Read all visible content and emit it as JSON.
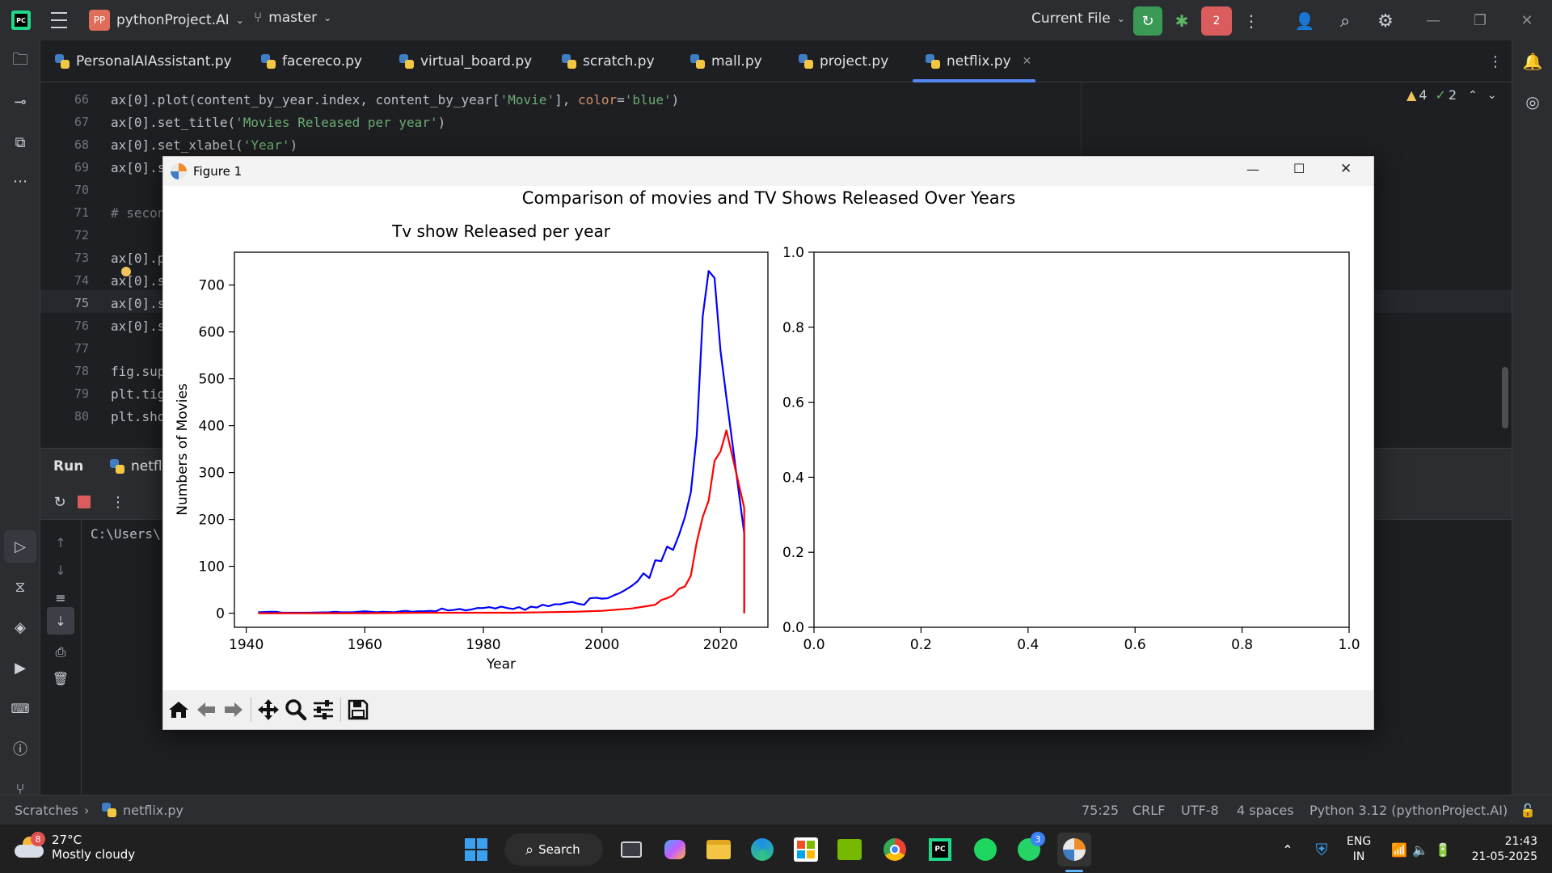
{
  "titlebar": {
    "project_badge": "PP",
    "project_name": "pythonProject.AI",
    "branch": "master",
    "run_config": "Current File",
    "vcs_badge": "2"
  },
  "tabs": [
    {
      "label": "PersonalAIAssistant.py"
    },
    {
      "label": "facereco.py"
    },
    {
      "label": "virtual_board.py"
    },
    {
      "label": "scratch.py"
    },
    {
      "label": "mall.py"
    },
    {
      "label": "project.py"
    },
    {
      "label": "netflix.py",
      "active": true
    }
  ],
  "editor": {
    "inspections": {
      "warnings": "4",
      "weak_warnings": "2"
    },
    "lines": [
      {
        "num": "66",
        "code": "ax[0].plot(content_by_year.index, content_by_year[",
        "s1": "'Movie'",
        "c2": "], ",
        "kw": "color",
        "c3": "=",
        "s2": "'blue'",
        "c4": ")"
      },
      {
        "num": "67",
        "code": "ax[0].set_title(",
        "s1": "'Movies Released per year'",
        "c2": ")"
      },
      {
        "num": "68",
        "code": "ax[0].set_xlabel(",
        "s1": "'Year'",
        "c2": ")"
      },
      {
        "num": "69",
        "code": "ax[0].s"
      },
      {
        "num": "70",
        "code": ""
      },
      {
        "num": "71",
        "code": "# secon"
      },
      {
        "num": "72",
        "code": ""
      },
      {
        "num": "73",
        "code": "ax[0].p"
      },
      {
        "num": "74",
        "code": "ax[0].s"
      },
      {
        "num": "75",
        "code": "ax[0].s"
      },
      {
        "num": "76",
        "code": "ax[0].s"
      },
      {
        "num": "77",
        "code": ""
      },
      {
        "num": "78",
        "code": "fig.sup"
      },
      {
        "num": "79",
        "code": "plt.tig"
      },
      {
        "num": "80",
        "code": "plt.sho"
      }
    ]
  },
  "run": {
    "title": "Run",
    "tab": "netflix",
    "console_line": "C:\\Users\\"
  },
  "figure": {
    "window_title": "Figure 1",
    "suptitle": "Comparison of movies and TV Shows Released Over Years"
  },
  "chart_data": [
    {
      "type": "line",
      "title": "Tv show Released per year",
      "xlabel": "Year",
      "ylabel": "Numbers of Movies",
      "xlim": [
        1938,
        2028
      ],
      "ylim": [
        -30,
        770
      ],
      "xticks": [
        "1940",
        "1960",
        "1980",
        "2000",
        "2020"
      ],
      "yticks": [
        "0",
        "100",
        "200",
        "300",
        "400",
        "500",
        "600",
        "700"
      ],
      "grid": false,
      "series": [
        {
          "color": "#0000ff",
          "x": [
            1942,
            1944,
            1945,
            1946,
            1950,
            1954,
            1955,
            1956,
            1958,
            1959,
            1960,
            1962,
            1963,
            1965,
            1966,
            1967,
            1968,
            1969,
            1970,
            1971,
            1972,
            1973,
            1974,
            1975,
            1976,
            1977,
            1978,
            1979,
            1980,
            1981,
            1982,
            1983,
            1984,
            1985,
            1986,
            1987,
            1988,
            1989,
            1990,
            1991,
            1992,
            1993,
            1994,
            1995,
            1996,
            1997,
            1998,
            1999,
            2000,
            2001,
            2002,
            2003,
            2004,
            2005,
            2006,
            2007,
            2008,
            2009,
            2010,
            2011,
            2012,
            2013,
            2014,
            2015,
            2016,
            2017,
            2018,
            2019,
            2020,
            2021,
            2024
          ],
          "y": [
            2,
            3,
            3,
            1,
            1,
            2,
            3,
            2,
            2,
            3,
            4,
            2,
            3,
            2,
            4,
            5,
            3,
            4,
            4,
            5,
            4,
            10,
            6,
            7,
            9,
            6,
            8,
            11,
            11,
            13,
            10,
            14,
            11,
            9,
            13,
            7,
            14,
            12,
            18,
            15,
            19,
            19,
            22,
            24,
            20,
            18,
            32,
            33,
            31,
            32,
            38,
            43,
            50,
            58,
            68,
            85,
            75,
            113,
            111,
            142,
            135,
            167,
            205,
            258,
            380,
            633,
            730,
            715,
            560,
            460,
            170
          ],
          "y_end": 0
        },
        {
          "color": "#ff0000",
          "x": [
            1942,
            1950,
            1960,
            1970,
            1980,
            1985,
            1990,
            1995,
            2000,
            2003,
            2005,
            2007,
            2009,
            2010,
            2011,
            2012,
            2013,
            2014,
            2015,
            2016,
            2017,
            2018,
            2019,
            2020,
            2021,
            2024
          ],
          "y": [
            0,
            0,
            0,
            1,
            1,
            1,
            2,
            3,
            5,
            8,
            10,
            14,
            18,
            28,
            32,
            38,
            52,
            57,
            80,
            152,
            205,
            240,
            325,
            345,
            390,
            225
          ],
          "y_end": 0
        }
      ]
    },
    {
      "type": "line",
      "title": "",
      "xlabel": "",
      "ylabel": "",
      "xlim": [
        0,
        1
      ],
      "ylim": [
        0,
        1
      ],
      "xticks": [
        "0.0",
        "0.2",
        "0.4",
        "0.6",
        "0.8",
        "1.0"
      ],
      "yticks": [
        "0.0",
        "0.2",
        "0.4",
        "0.6",
        "0.8",
        "1.0"
      ],
      "series": []
    }
  ],
  "statusbar": {
    "crumb_root": "Scratches",
    "crumb_file": "netflix.py",
    "position": "75:25",
    "line_sep": "CRLF",
    "encoding": "UTF-8",
    "indent": "4 spaces",
    "interpreter": "Python 3.12 (pythonProject.AI)"
  },
  "taskbar": {
    "weather_temp": "27°C",
    "weather_desc": "Mostly cloudy",
    "weather_badge": "8",
    "search": "Search",
    "whatsapp_badge": "3",
    "lang_top": "ENG",
    "lang_bottom": "IN",
    "time": "21:43",
    "date": "21-05-2025"
  },
  "colors": {
    "ide_bg": "#1e1f22",
    "ide_panel": "#2b2d30",
    "accent_green": "#3a9a55",
    "accent_red": "#db5c5c",
    "series_blue": "#0000ff",
    "series_red": "#ff0000"
  }
}
